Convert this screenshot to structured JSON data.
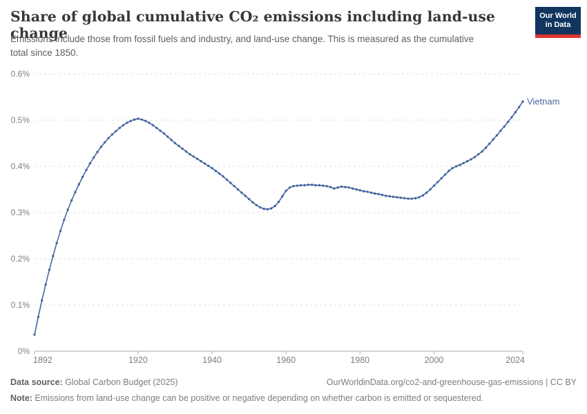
{
  "header": {
    "title": "Share of global cumulative CO₂ emissions including land-use change",
    "subtitle": "Emissions include those from fossil fuels and industry, and land-use change. This is measured as the cumulative total since 1850.",
    "logo": {
      "line1": "Our World",
      "line2": "in Data"
    }
  },
  "chart_data": {
    "type": "line",
    "title": "Share of global cumulative CO₂ emissions including land-use change",
    "unit": "%",
    "xlim": [
      1892,
      2024
    ],
    "ylim": [
      0,
      0.6
    ],
    "grid": "horizontal-dashed",
    "legend_position": "end-of-line-label",
    "x_ticks": [
      {
        "year": 1892,
        "label": "1892"
      },
      {
        "year": 1920,
        "label": "1920"
      },
      {
        "year": 1940,
        "label": "1940"
      },
      {
        "year": 1960,
        "label": "1960"
      },
      {
        "year": 1980,
        "label": "1980"
      },
      {
        "year": 2000,
        "label": "2000"
      },
      {
        "year": 2024,
        "label": "2024"
      }
    ],
    "y_ticks": [
      {
        "value": 0,
        "label": "0%"
      },
      {
        "value": 0.1,
        "label": "0.1%"
      },
      {
        "value": 0.2,
        "label": "0.2%"
      },
      {
        "value": 0.3,
        "label": "0.3%"
      },
      {
        "value": 0.4,
        "label": "0.4%"
      },
      {
        "value": 0.5,
        "label": "0.5%"
      },
      {
        "value": 0.6,
        "label": "0.6%"
      }
    ],
    "series": [
      {
        "name": "Vietnam",
        "color": "#4665a0",
        "points": [
          [
            1892,
            0.036
          ],
          [
            1893,
            0.074
          ],
          [
            1894,
            0.11
          ],
          [
            1895,
            0.144
          ],
          [
            1896,
            0.176
          ],
          [
            1897,
            0.206
          ],
          [
            1898,
            0.234
          ],
          [
            1899,
            0.26
          ],
          [
            1900,
            0.284
          ],
          [
            1901,
            0.306
          ],
          [
            1902,
            0.326
          ],
          [
            1903,
            0.344
          ],
          [
            1904,
            0.361
          ],
          [
            1905,
            0.377
          ],
          [
            1906,
            0.392
          ],
          [
            1907,
            0.406
          ],
          [
            1908,
            0.419
          ],
          [
            1909,
            0.431
          ],
          [
            1910,
            0.442
          ],
          [
            1911,
            0.452
          ],
          [
            1912,
            0.461
          ],
          [
            1913,
            0.469
          ],
          [
            1914,
            0.476
          ],
          [
            1915,
            0.483
          ],
          [
            1916,
            0.489
          ],
          [
            1917,
            0.494
          ],
          [
            1918,
            0.498
          ],
          [
            1919,
            0.501
          ],
          [
            1920,
            0.503
          ],
          [
            1921,
            0.501
          ],
          [
            1922,
            0.498
          ],
          [
            1923,
            0.494
          ],
          [
            1924,
            0.489
          ],
          [
            1925,
            0.483
          ],
          [
            1926,
            0.477
          ],
          [
            1927,
            0.471
          ],
          [
            1928,
            0.464
          ],
          [
            1929,
            0.457
          ],
          [
            1930,
            0.45
          ],
          [
            1931,
            0.444
          ],
          [
            1932,
            0.438
          ],
          [
            1933,
            0.432
          ],
          [
            1934,
            0.426
          ],
          [
            1935,
            0.421
          ],
          [
            1936,
            0.416
          ],
          [
            1937,
            0.411
          ],
          [
            1938,
            0.406
          ],
          [
            1939,
            0.401
          ],
          [
            1940,
            0.396
          ],
          [
            1941,
            0.39
          ],
          [
            1942,
            0.384
          ],
          [
            1943,
            0.378
          ],
          [
            1944,
            0.371
          ],
          [
            1945,
            0.364
          ],
          [
            1946,
            0.357
          ],
          [
            1947,
            0.35
          ],
          [
            1948,
            0.343
          ],
          [
            1949,
            0.336
          ],
          [
            1950,
            0.329
          ],
          [
            1951,
            0.322
          ],
          [
            1952,
            0.316
          ],
          [
            1953,
            0.311
          ],
          [
            1954,
            0.308
          ],
          [
            1955,
            0.307
          ],
          [
            1956,
            0.309
          ],
          [
            1957,
            0.314
          ],
          [
            1958,
            0.323
          ],
          [
            1959,
            0.335
          ],
          [
            1960,
            0.347
          ],
          [
            1961,
            0.354
          ],
          [
            1962,
            0.357
          ],
          [
            1963,
            0.358
          ],
          [
            1964,
            0.359
          ],
          [
            1965,
            0.359
          ],
          [
            1966,
            0.36
          ],
          [
            1967,
            0.36
          ],
          [
            1968,
            0.359
          ],
          [
            1969,
            0.359
          ],
          [
            1970,
            0.358
          ],
          [
            1971,
            0.357
          ],
          [
            1972,
            0.355
          ],
          [
            1973,
            0.352
          ],
          [
            1974,
            0.354
          ],
          [
            1975,
            0.356
          ],
          [
            1976,
            0.355
          ],
          [
            1977,
            0.354
          ],
          [
            1978,
            0.352
          ],
          [
            1979,
            0.35
          ],
          [
            1980,
            0.348
          ],
          [
            1981,
            0.346
          ],
          [
            1982,
            0.345
          ],
          [
            1983,
            0.343
          ],
          [
            1984,
            0.341
          ],
          [
            1985,
            0.34
          ],
          [
            1986,
            0.338
          ],
          [
            1987,
            0.336
          ],
          [
            1988,
            0.335
          ],
          [
            1989,
            0.334
          ],
          [
            1990,
            0.333
          ],
          [
            1991,
            0.332
          ],
          [
            1992,
            0.331
          ],
          [
            1993,
            0.33
          ],
          [
            1994,
            0.33
          ],
          [
            1995,
            0.331
          ],
          [
            1996,
            0.333
          ],
          [
            1997,
            0.337
          ],
          [
            1998,
            0.343
          ],
          [
            1999,
            0.35
          ],
          [
            2000,
            0.358
          ],
          [
            2001,
            0.366
          ],
          [
            2002,
            0.374
          ],
          [
            2003,
            0.382
          ],
          [
            2004,
            0.39
          ],
          [
            2005,
            0.396
          ],
          [
            2006,
            0.4
          ],
          [
            2007,
            0.403
          ],
          [
            2008,
            0.407
          ],
          [
            2009,
            0.411
          ],
          [
            2010,
            0.415
          ],
          [
            2011,
            0.42
          ],
          [
            2012,
            0.426
          ],
          [
            2013,
            0.432
          ],
          [
            2014,
            0.44
          ],
          [
            2015,
            0.449
          ],
          [
            2016,
            0.458
          ],
          [
            2017,
            0.467
          ],
          [
            2018,
            0.477
          ],
          [
            2019,
            0.486
          ],
          [
            2020,
            0.496
          ],
          [
            2021,
            0.506
          ],
          [
            2022,
            0.517
          ],
          [
            2023,
            0.528
          ],
          [
            2024,
            0.54
          ]
        ]
      }
    ]
  },
  "footer": {
    "datasource_label": "Data source:",
    "datasource_value": " Global Carbon Budget (2025)",
    "citation": "OurWorldinData.org/co2-and-greenhouse-gas-emissions | CC BY",
    "note_label": "Note:",
    "note_value": " Emissions from land-use change can be positive or negative depending on whether carbon is emitted or sequestered."
  }
}
